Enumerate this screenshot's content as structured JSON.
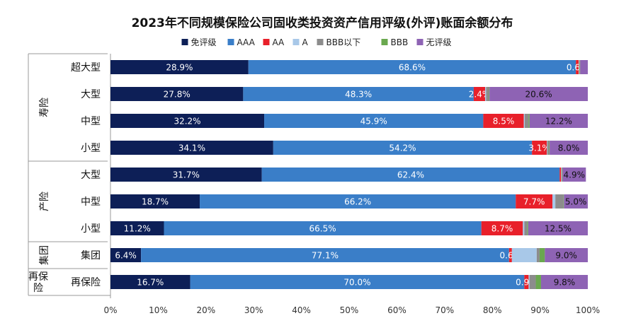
{
  "chart_data": {
    "type": "bar",
    "orientation": "horizontal",
    "stacked": "percent",
    "title": "2023年不同规模保险公司固收类投资资产信用评级(外评)账面余额分布",
    "legend_position": "top",
    "groups": [
      {
        "label": "寿险",
        "categories": [
          "超大型",
          "大型",
          "中型",
          "小型"
        ]
      },
      {
        "label": "产险",
        "categories": [
          "大型",
          "中型",
          "小型"
        ]
      },
      {
        "label": "集团",
        "categories": [
          "集团"
        ]
      },
      {
        "label": "再保险",
        "categories": [
          "再保险"
        ]
      }
    ],
    "categories": [
      "超大型",
      "大型",
      "中型",
      "小型",
      "大型",
      "中型",
      "小型",
      "集团",
      "再保险"
    ],
    "series": [
      {
        "name": "免评级",
        "color": "#0d1f57",
        "values": [
          28.9,
          27.8,
          32.2,
          34.1,
          31.7,
          18.7,
          11.2,
          6.4,
          16.7
        ],
        "labels": [
          "28.9%",
          "27.8%",
          "32.2%",
          "34.1%",
          "31.7%",
          "18.7%",
          "11.2%",
          "6.4%",
          "16.7%"
        ]
      },
      {
        "name": "AAA",
        "color": "#3a7ec8",
        "values": [
          68.6,
          48.3,
          45.9,
          54.2,
          62.4,
          66.2,
          66.5,
          77.1,
          70.0
        ],
        "labels": [
          "68.6%",
          "48.3%",
          "45.9%",
          "54.2%",
          "62.4%",
          "66.2%",
          "66.5%",
          "77.1%",
          "70.0%"
        ]
      },
      {
        "name": "AA",
        "color": "#e8202a",
        "values": [
          0.6,
          2.4,
          8.5,
          3.1,
          0.3,
          7.7,
          8.7,
          0.6,
          0.9
        ],
        "labels": [
          "0.6%",
          "2.4%",
          "8.5%",
          "3.1%",
          "",
          "7.7%",
          "8.7%",
          "0.6%",
          "0.9%"
        ]
      },
      {
        "name": "A",
        "color": "#a8c8e8",
        "values": [
          0.1,
          0.2,
          0.2,
          0.1,
          0.1,
          0.6,
          0.3,
          5.2,
          0.2
        ],
        "labels": [
          "",
          "",
          "",
          "",
          "",
          "",
          "",
          "",
          ""
        ]
      },
      {
        "name": "BBB以下",
        "color": "#8c8c8c",
        "values": [
          0.1,
          0.6,
          0.8,
          0.4,
          0.1,
          1.7,
          0.6,
          0.6,
          1.3
        ],
        "labels": [
          "",
          "",
          "",
          "",
          "",
          "",
          "",
          "",
          ""
        ]
      },
      {
        "name": "BBB",
        "color": "#6aa84f",
        "values": [
          0.1,
          0.1,
          0.2,
          0.1,
          0.1,
          0.1,
          0.2,
          1.1,
          1.1
        ],
        "labels": [
          "",
          "",
          "",
          "",
          "",
          "",
          "",
          "",
          ""
        ]
      },
      {
        "name": "无评级",
        "color": "#8e63b4",
        "values": [
          1.6,
          20.6,
          12.2,
          8.0,
          4.9,
          5.0,
          12.5,
          9.0,
          9.8
        ],
        "labels": [
          "",
          "20.6%",
          "12.2%",
          "8.0%",
          "4.9%",
          "5.0%",
          "12.5%",
          "9.0%",
          "9.8%"
        ]
      }
    ],
    "xlim": [
      0,
      100
    ],
    "xticks": [
      "0%",
      "10%",
      "20%",
      "30%",
      "40%",
      "50%",
      "60%",
      "70%",
      "80%",
      "90%",
      "100%"
    ],
    "grid": false
  }
}
